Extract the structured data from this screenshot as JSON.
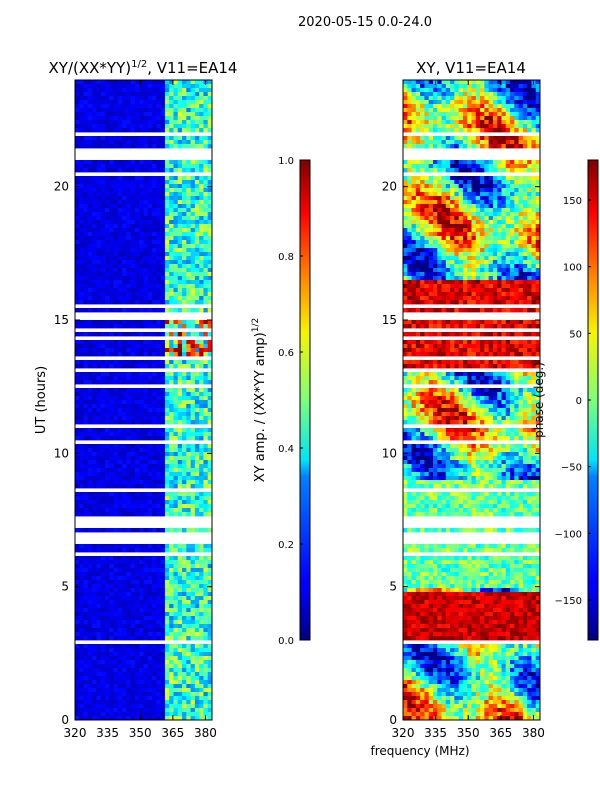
{
  "suptitle": "2020-05-15 0.0-24.0",
  "chart_data": [
    {
      "type": "heatmap",
      "title_main": "XY/(XX*YY)",
      "title_sup": "1/2",
      "title_rest": ", V11=EA14",
      "ylabel": "UT (hours)",
      "xlabel": "",
      "xlim": [
        320,
        383
      ],
      "ylim": [
        0,
        24
      ],
      "xticks": [
        320,
        335,
        350,
        365,
        380
      ],
      "yticks": [
        0,
        5,
        10,
        15,
        20
      ],
      "colorbar": {
        "label_main": "XY amp. / (XX*YY amp)",
        "label_sup": "1/2",
        "range": [
          0.0,
          1.0
        ],
        "ticks": [
          "0.0",
          "0.2",
          "0.4",
          "0.6",
          "0.8",
          "1.0"
        ],
        "tick_values": [
          0.0,
          0.2,
          0.4,
          0.6,
          0.8,
          1.0
        ]
      }
    },
    {
      "type": "heatmap",
      "title": "XY, V11=EA14",
      "xlabel": "frequency (MHz)",
      "ylabel": "",
      "xlim": [
        320,
        383
      ],
      "ylim": [
        0,
        24
      ],
      "xticks": [
        320,
        335,
        350,
        365,
        380
      ],
      "yticks": [
        0,
        5,
        10,
        15,
        20
      ],
      "colorbar": {
        "label": "phase (deg.)",
        "range": [
          -180,
          180
        ],
        "ticks": [
          "150",
          "100",
          "50",
          "0",
          "−50",
          "−100",
          "−150"
        ],
        "tick_values": [
          150,
          100,
          50,
          0,
          -50,
          -100,
          -150
        ]
      }
    }
  ]
}
